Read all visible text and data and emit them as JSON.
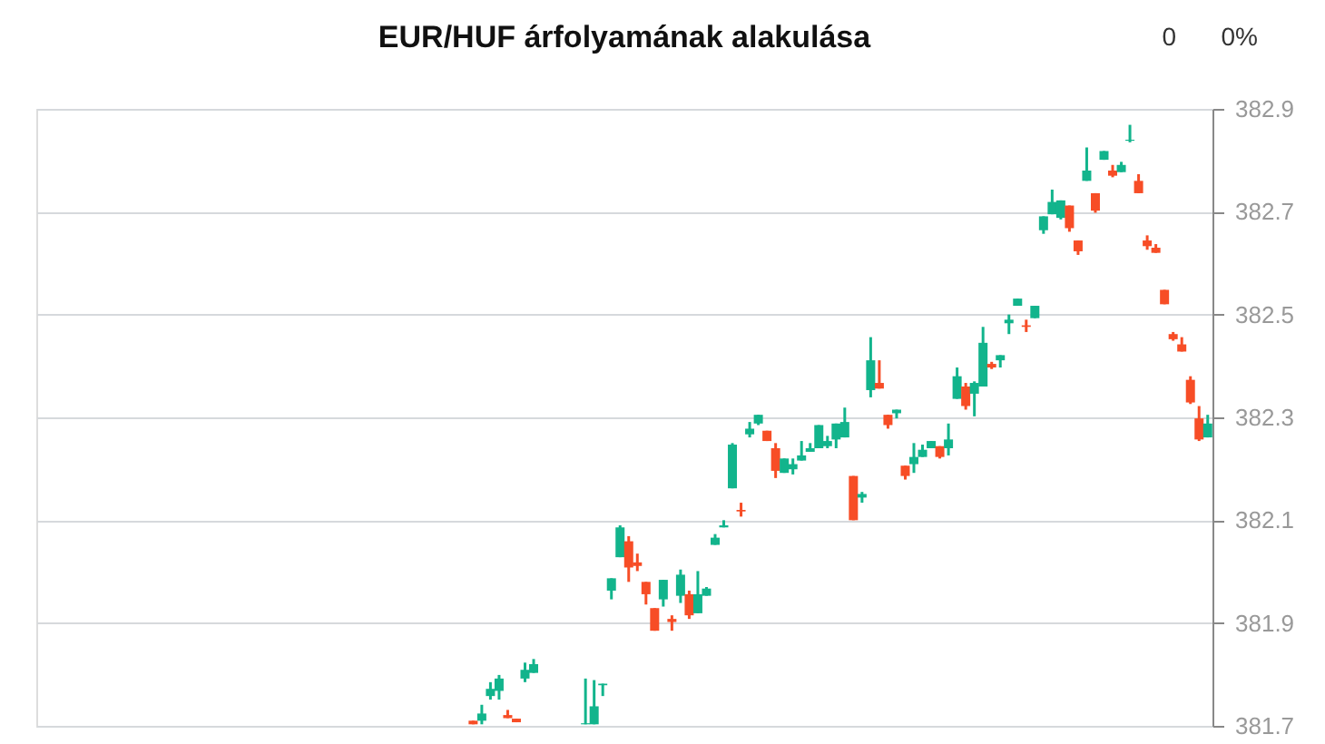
{
  "chart_data": {
    "type": "candlestick",
    "title": "EUR/HUF árfolyamának alakulása",
    "annotations": [
      "0",
      "0%"
    ],
    "categories": [
      null,
      null,
      null,
      null,
      null,
      null,
      null,
      null,
      null,
      null,
      null,
      null,
      null,
      null,
      null,
      null,
      null,
      null,
      null,
      null,
      null,
      null,
      null,
      null,
      null,
      null,
      null,
      null,
      null,
      null,
      null,
      null,
      null,
      null,
      null,
      null,
      null,
      null,
      null,
      null,
      null,
      null,
      null,
      null,
      null,
      null,
      null,
      null,
      null,
      null,
      null,
      null,
      null,
      null,
      null,
      null,
      null,
      null,
      null,
      null,
      null,
      null,
      null,
      null,
      null,
      null,
      null,
      null,
      null,
      null,
      null,
      null,
      null,
      null,
      null,
      null,
      null,
      null,
      null,
      null,
      null,
      null,
      null,
      null,
      null,
      null,
      null,
      null,
      null,
      null,
      null,
      null,
      null,
      null,
      null,
      null,
      null,
      null,
      null,
      null,
      null,
      null,
      null,
      null,
      null,
      null,
      null,
      null,
      null,
      null,
      null,
      null,
      null,
      null,
      null,
      null,
      null,
      null,
      null,
      null,
      null,
      null,
      null,
      null,
      null,
      null,
      null,
      null,
      null,
      null,
      null,
      null,
      null,
      null,
      null,
      null
    ],
    "ohlc": [
      null,
      null,
      null,
      null,
      null,
      null,
      null,
      null,
      null,
      null,
      null,
      null,
      null,
      null,
      null,
      null,
      null,
      null,
      null,
      null,
      null,
      null,
      null,
      null,
      null,
      null,
      null,
      null,
      null,
      null,
      null,
      null,
      null,
      null,
      null,
      null,
      null,
      null,
      null,
      null,
      null,
      null,
      null,
      null,
      null,
      null,
      null,
      null,
      null,
      null,
      [
        381.71,
        381.71,
        381.703,
        381.703
      ],
      [
        381.71,
        381.741,
        381.703,
        381.724
      ],
      [
        381.758,
        381.785,
        381.751,
        381.772
      ],
      [
        381.768,
        381.799,
        381.751,
        381.792
      ],
      [
        381.721,
        381.731,
        381.715,
        381.715
      ],
      [
        381.714,
        381.714,
        381.707,
        381.707
      ],
      [
        381.792,
        381.823,
        381.785,
        381.809
      ],
      [
        381.803,
        381.83,
        381.803,
        381.82
      ],
      null,
      null,
      null,
      null,
      null,
      [
        381.703,
        381.792,
        381.703,
        381.705
      ],
      [
        381.703,
        381.789,
        381.703,
        381.738
      ],
      [
        381.779,
        381.782,
        381.758,
        381.782
      ],
      [
        381.963,
        381.987,
        381.946,
        381.987
      ],
      [
        382.028,
        382.09,
        382.028,
        382.086
      ],
      [
        382.059,
        382.069,
        381.98,
        382.008
      ],
      [
        382.018,
        382.035,
        382.001,
        382.011
      ],
      [
        381.98,
        381.98,
        381.936,
        381.956
      ],
      [
        381.929,
        381.929,
        381.885,
        381.885
      ],
      [
        381.946,
        381.984,
        381.932,
        381.984
      ],
      [
        381.908,
        381.915,
        381.885,
        381.902
      ],
      [
        381.953,
        382.004,
        381.939,
        381.994
      ],
      [
        381.956,
        381.963,
        381.908,
        381.915
      ],
      [
        381.919,
        382.001,
        381.919,
        381.956
      ],
      [
        381.953,
        381.97,
        381.953,
        381.967
      ],
      [
        382.052,
        382.073,
        382.052,
        382.066
      ],
      [
        382.086,
        382.1,
        382.086,
        382.09
      ],
      [
        382.162,
        382.25,
        382.162,
        382.247
      ],
      [
        382.12,
        382.134,
        382.107,
        382.117
      ],
      [
        382.267,
        382.291,
        382.261,
        382.278
      ],
      [
        382.288,
        382.305,
        382.285,
        382.305
      ],
      [
        382.274,
        382.274,
        382.254,
        382.254
      ],
      [
        382.24,
        382.25,
        382.182,
        382.196
      ],
      [
        382.192,
        382.22,
        382.192,
        382.22
      ],
      [
        382.199,
        382.22,
        382.189,
        382.209
      ],
      [
        382.216,
        382.254,
        382.216,
        382.226
      ],
      [
        382.233,
        382.25,
        382.233,
        382.24
      ],
      [
        382.24,
        382.285,
        382.24,
        382.285
      ],
      [
        382.244,
        382.264,
        382.24,
        382.254
      ],
      [
        382.257,
        382.288,
        382.24,
        382.288
      ],
      [
        382.261,
        382.319,
        382.261,
        382.291
      ],
      [
        382.186,
        382.186,
        382.1,
        382.1
      ],
      [
        382.144,
        382.155,
        382.134,
        382.151
      ],
      [
        382.353,
        382.456,
        382.339,
        382.411
      ],
      [
        382.367,
        382.411,
        382.356,
        382.356
      ],
      [
        382.305,
        382.305,
        382.278,
        382.285
      ],
      [
        382.308,
        382.315,
        382.298,
        382.315
      ],
      [
        382.206,
        382.206,
        382.179,
        382.186
      ],
      [
        382.209,
        382.25,
        382.192,
        382.223
      ],
      [
        382.223,
        382.247,
        382.223,
        382.237
      ],
      [
        382.24,
        382.254,
        382.24,
        382.254
      ],
      [
        382.244,
        382.244,
        382.22,
        382.223
      ],
      [
        382.24,
        382.288,
        382.226,
        382.257
      ],
      [
        382.336,
        382.397,
        382.336,
        382.38
      ],
      [
        382.36,
        382.367,
        382.315,
        382.322
      ],
      [
        382.346,
        382.37,
        382.302,
        382.367
      ],
      [
        382.36,
        382.476,
        382.36,
        382.445
      ],
      [
        382.404,
        382.408,
        382.394,
        382.397
      ],
      [
        382.411,
        382.421,
        382.397,
        382.421
      ],
      [
        382.483,
        382.5,
        382.462,
        382.49
      ],
      [
        382.517,
        382.531,
        382.517,
        382.531
      ],
      [
        382.479,
        382.49,
        382.466,
        382.476
      ],
      [
        382.493,
        382.517,
        382.493,
        382.517
      ],
      [
        382.664,
        382.691,
        382.657,
        382.691
      ],
      [
        382.695,
        382.743,
        382.695,
        382.719
      ],
      [
        382.688,
        382.722,
        382.685,
        382.722
      ],
      [
        382.712,
        382.712,
        382.661,
        382.668
      ],
      [
        382.644,
        382.644,
        382.616,
        382.623
      ],
      [
        382.76,
        382.825,
        382.76,
        382.78
      ],
      [
        382.736,
        382.736,
        382.698,
        382.702
      ],
      [
        382.801,
        382.818,
        382.801,
        382.818
      ],
      [
        382.78,
        382.791,
        382.767,
        382.77
      ],
      [
        382.777,
        382.797,
        382.777,
        382.791
      ],
      [
        382.838,
        382.869,
        382.835,
        382.84
      ],
      [
        382.76,
        382.773,
        382.736,
        382.736
      ],
      [
        382.644,
        382.654,
        382.626,
        382.633
      ],
      [
        382.63,
        382.637,
        382.62,
        382.62
      ],
      [
        382.548,
        382.548,
        382.52,
        382.52
      ],
      [
        382.462,
        382.466,
        382.449,
        382.452
      ],
      [
        382.442,
        382.456,
        382.428,
        382.428
      ],
      [
        382.373,
        382.38,
        382.326,
        382.329
      ],
      [
        382.298,
        382.322,
        382.254,
        382.257
      ],
      [
        382.261,
        382.305,
        382.261,
        382.288
      ]
    ],
    "colors": [
      null,
      null,
      null,
      null,
      null,
      null,
      null,
      null,
      null,
      null,
      null,
      null,
      null,
      null,
      null,
      null,
      null,
      null,
      null,
      null,
      null,
      null,
      null,
      null,
      null,
      null,
      null,
      null,
      null,
      null,
      null,
      null,
      null,
      null,
      null,
      null,
      null,
      null,
      null,
      null,
      null,
      null,
      null,
      null,
      null,
      null,
      null,
      null,
      null,
      null,
      "#f74d26",
      "#12b48c",
      "#12b48c",
      "#12b48c",
      "#f74d26",
      "#f74d26",
      "#12b48c",
      "#12b48c",
      null,
      null,
      null,
      null,
      null,
      "#12b48c",
      "#12b48c",
      "#12b48c",
      "#12b48c",
      "#12b48c",
      "#f74d26",
      "#f74d26",
      "#f74d26",
      "#f74d26",
      "#12b48c",
      "#f74d26",
      "#12b48c",
      "#f74d26",
      "#12b48c",
      "#12b48c",
      "#12b48c",
      "#12b48c",
      "#12b48c",
      "#f74d26",
      "#12b48c",
      "#12b48c",
      "#f74d26",
      "#f74d26",
      "#12b48c",
      "#12b48c",
      "#12b48c",
      "#12b48c",
      "#12b48c",
      "#12b48c",
      "#12b48c",
      "#12b48c",
      "#f74d26",
      "#12b48c",
      "#12b48c",
      "#f74d26",
      "#f74d26",
      "#12b48c",
      "#f74d26",
      "#12b48c",
      "#12b48c",
      "#12b48c",
      "#f74d26",
      "#12b48c",
      "#12b48c",
      "#f74d26",
      "#12b48c",
      "#12b48c",
      "#f74d26",
      "#12b48c",
      "#12b48c",
      "#12b48c",
      "#f74d26",
      "#12b48c",
      "#12b48c",
      "#12b48c",
      "#12b48c",
      "#f74d26",
      "#f74d26",
      "#12b48c",
      "#f74d26",
      "#12b48c",
      "#f74d26",
      "#12b48c",
      "#12b48c",
      "#f74d26",
      "#f74d26",
      "#f74d26",
      "#f74d26",
      "#f74d26",
      "#f74d26",
      "#f74d26",
      "#f74d26",
      "#12b48c"
    ],
    "ylim": [
      381.7,
      382.9
    ],
    "yticks": [
      381.7,
      381.9,
      382.1,
      382.3,
      382.5,
      382.7,
      382.9
    ],
    "grid": "y",
    "tick_labels": "y"
  }
}
